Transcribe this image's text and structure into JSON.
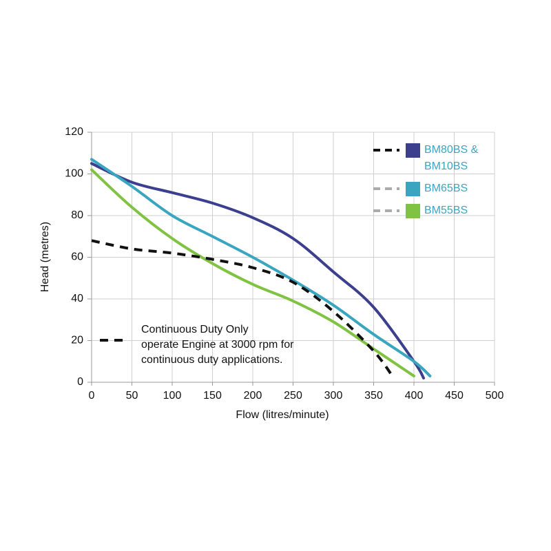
{
  "chart_data": {
    "type": "line",
    "xlabel": "Flow (litres/minute)",
    "ylabel": "Head (metres)",
    "xlim": [
      0,
      500
    ],
    "xticks": [
      0,
      50,
      100,
      150,
      200,
      250,
      300,
      350,
      400,
      450,
      500
    ],
    "ylim": [
      0,
      120
    ],
    "yticks": [
      0,
      20,
      40,
      60,
      80,
      100,
      120
    ],
    "grid": true,
    "legend_color": "#3aa5bf",
    "series": [
      {
        "name": "BM80BS & BM10BS",
        "color": "#3b3f8e",
        "legend_dash_color": "#111111",
        "x": [
          0,
          50,
          100,
          150,
          200,
          250,
          300,
          350,
          400,
          412
        ],
        "values": [
          105,
          96,
          91,
          86,
          79,
          69,
          53,
          36,
          10,
          2
        ]
      },
      {
        "name": "BM65BS",
        "color": "#3aa5bf",
        "legend_dash_color": "#aaaaaa",
        "x": [
          0,
          50,
          100,
          150,
          200,
          250,
          300,
          350,
          400,
          420
        ],
        "values": [
          107,
          94,
          80,
          70,
          60,
          49,
          37,
          23,
          10,
          3
        ]
      },
      {
        "name": "BM55BS",
        "color": "#80c242",
        "legend_dash_color": "#aaaaaa",
        "x": [
          0,
          50,
          100,
          150,
          200,
          250,
          300,
          350,
          400
        ],
        "values": [
          102,
          84,
          69,
          57,
          47,
          39,
          29,
          16,
          3
        ]
      },
      {
        "name": "Continuous Duty Only",
        "color": "#111111",
        "dashed": true,
        "x": [
          0,
          50,
          100,
          150,
          200,
          250,
          300,
          350,
          375
        ],
        "values": [
          68,
          64,
          62,
          59,
          55,
          48,
          34,
          15,
          2
        ]
      }
    ],
    "annotation": [
      "operate Engine at 3000 rpm for",
      "continuous duty applications."
    ]
  }
}
